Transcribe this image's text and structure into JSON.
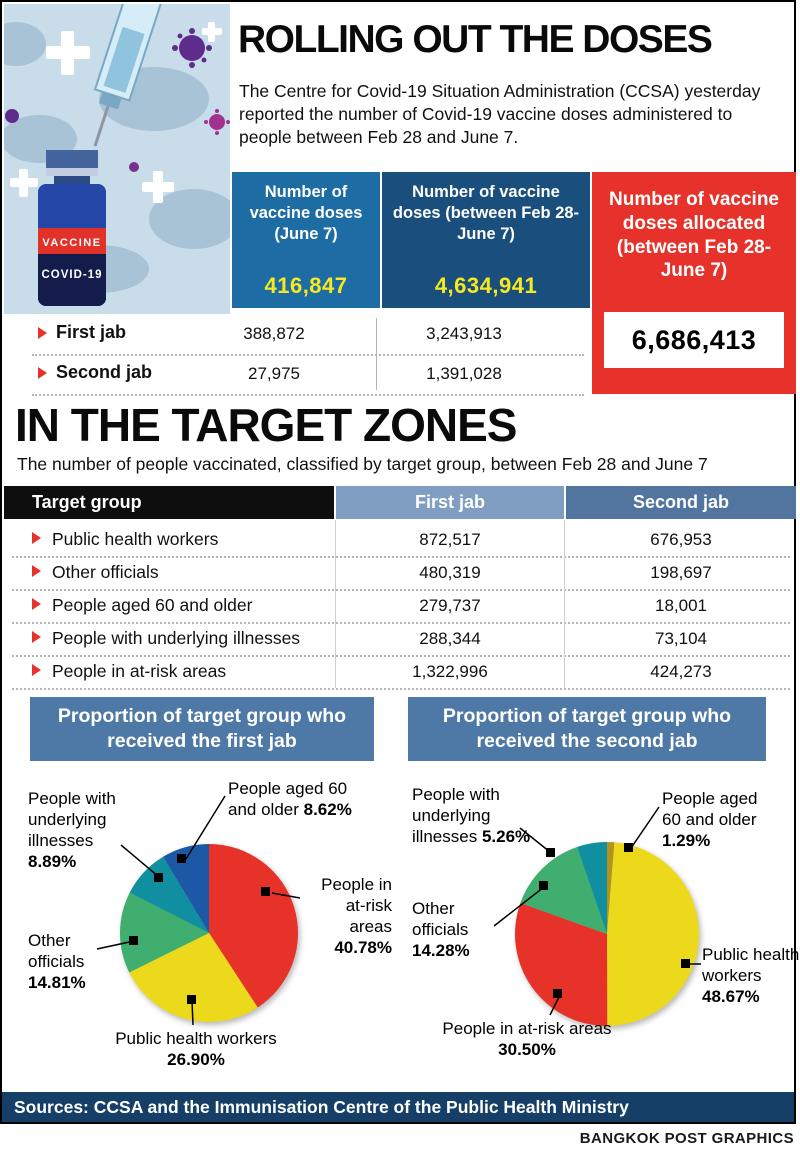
{
  "header": {
    "title": "ROLLING OUT THE DOSES",
    "intro": "The Centre for Covid-19 Situation Administration (CCSA) yesterday reported the number of Covid-19 vaccine doses administered to people between Feb 28 and June 7."
  },
  "illustration": {
    "vial_label": "VACCINE",
    "vial_name": "COVID-19"
  },
  "doses": {
    "columns": [
      {
        "header": "Number of vaccine doses (June 7)",
        "total": "416,847"
      },
      {
        "header": "Number of vaccine doses (between Feb 28-June 7)",
        "total": "4,634,941"
      }
    ],
    "allocated": {
      "header": "Number of vaccine doses allocated (between Feb 28-June 7)",
      "value": "6,686,413"
    },
    "rows": [
      {
        "label": "First jab",
        "doses_june7": "388,872",
        "doses_cumulative": "3,243,913"
      },
      {
        "label": "Second jab",
        "doses_june7": "27,975",
        "doses_cumulative": "1,391,028"
      }
    ]
  },
  "target": {
    "title": "IN THE TARGET ZONES",
    "subtitle": "The number of people vaccinated, classified by target group, between Feb 28 and June 7",
    "headers": {
      "group": "Target group",
      "first": "First jab",
      "second": "Second jab"
    },
    "rows": [
      {
        "label": "Public health workers",
        "first": "872,517",
        "second": "676,953"
      },
      {
        "label": "Other officials",
        "first": "480,319",
        "second": "198,697"
      },
      {
        "label": "People aged 60 and older",
        "first": "279,737",
        "second": "18,001"
      },
      {
        "label": "People with underlying illnesses",
        "first": "288,344",
        "second": "73,104"
      },
      {
        "label": "People in at-risk areas",
        "first": "1,322,996",
        "second": "424,273"
      }
    ]
  },
  "chart_data": [
    {
      "type": "pie",
      "title": "Proportion of target group who received the first jab",
      "labels": [
        "People in at-risk areas",
        "Public health workers",
        "Other officials",
        "People with underlying illnesses",
        "People aged 60 and older"
      ],
      "values": [
        40.78,
        26.9,
        14.81,
        8.89,
        8.62
      ],
      "colors": [
        "#e63229",
        "#edd91b",
        "#3fae6e",
        "#0f8f9f",
        "#1c58a6"
      ],
      "start_angle_deg": 0,
      "direction": "clockwise",
      "legend_position": "around"
    },
    {
      "type": "pie",
      "title": "Proportion of target group who received the second jab",
      "labels": [
        "People aged 60 and older",
        "Public health workers",
        "People in at-risk areas",
        "Other officials",
        "People with underlying illnesses"
      ],
      "values": [
        1.29,
        48.67,
        30.5,
        14.28,
        5.26
      ],
      "colors": [
        "#b2941d",
        "#edd91b",
        "#e63229",
        "#3fae6e",
        "#0f8f9f"
      ],
      "start_angle_deg": 0,
      "direction": "clockwise",
      "legend_position": "around"
    }
  ],
  "footer": {
    "sources": "Sources: CCSA and the Immunisation Centre of the Public Health Ministry",
    "credit": "BANGKOK POST GRAPHICS"
  }
}
